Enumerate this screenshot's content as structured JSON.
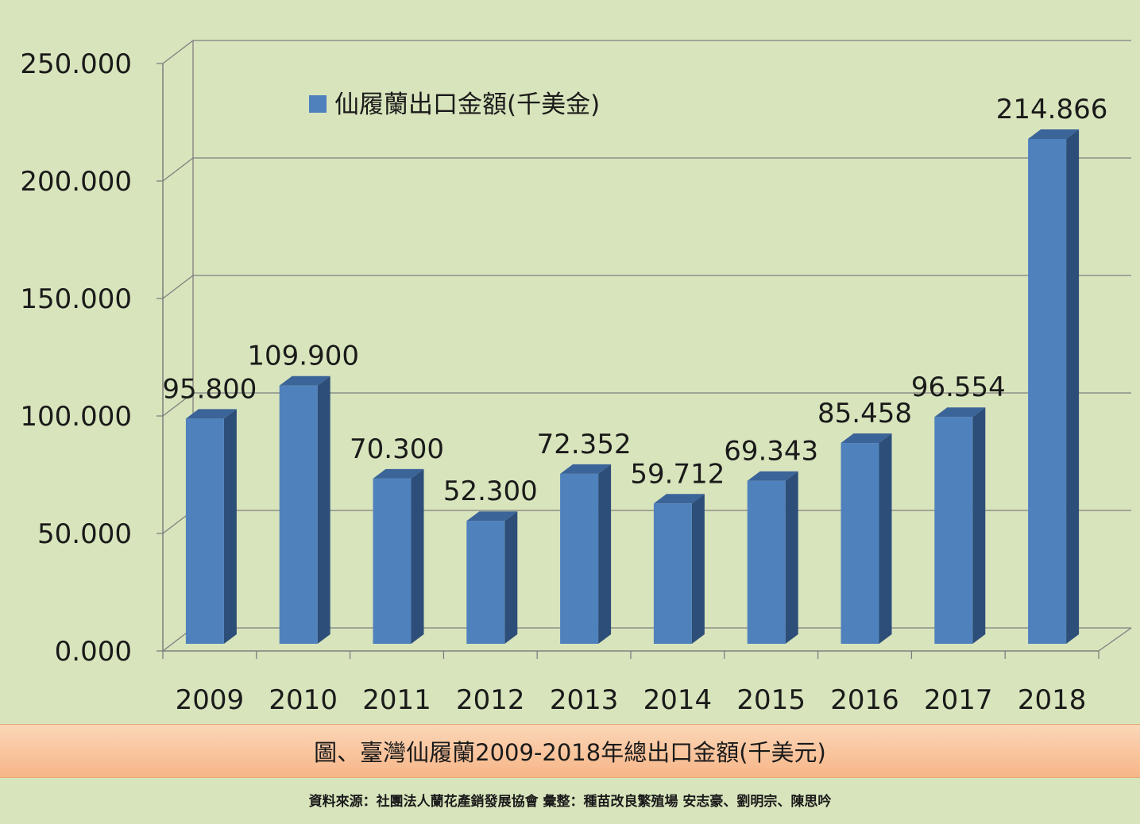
{
  "chart_data": {
    "type": "bar",
    "categories": [
      "2009",
      "2010",
      "2011",
      "2012",
      "2013",
      "2014",
      "2015",
      "2016",
      "2017",
      "2018"
    ],
    "series": [
      {
        "name": "仙履蘭出口金額(千美金)",
        "values": [
          95.8,
          109.9,
          70.3,
          52.3,
          72.352,
          59.712,
          69.343,
          85.458,
          96.554,
          214.866
        ]
      }
    ],
    "data_labels": [
      "95.800",
      "109.900",
      "70.300",
      "52.300",
      "72.352",
      "59.712",
      "69.343",
      "85.458",
      "96.554",
      "214.866"
    ],
    "y_tick_labels": [
      "0.000",
      "50.000",
      "100.000",
      "150.000",
      "200.000",
      "250.000"
    ],
    "y_ticks": [
      0,
      50,
      100,
      150,
      200,
      250
    ],
    "ylim": [
      0,
      250
    ],
    "grid": true,
    "legend": "top-left",
    "title": "",
    "xlabel": "",
    "ylabel": "",
    "colors": {
      "bar_front": "#4f81bd",
      "bar_side": "#2d4e78",
      "bar_top": "#3b6499",
      "background": "#d8e4bc",
      "grid": "#7f7f7f"
    }
  },
  "caption": "圖、臺灣仙履蘭2009-2018年總出口金額(千美元)",
  "source": "資料來源：社團法人蘭花產銷發展協會  彙整：種苗改良繁殖場  安志豪、劉明宗、陳思吟"
}
